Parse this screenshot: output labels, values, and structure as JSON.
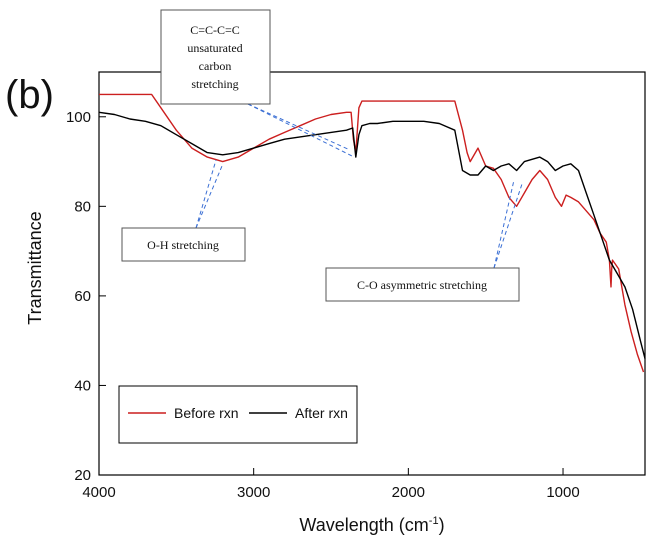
{
  "chart_data": {
    "type": "line",
    "panel_label": "(b)",
    "title": "",
    "xlabel": "Wavelength (cm",
    "xlabel_sup": "-1",
    "xlabel_close": ")",
    "ylabel": "Transmittance",
    "xlim": [
      4000,
      470
    ],
    "ylim": [
      20,
      110
    ],
    "x_ticks": [
      4000,
      3000,
      2000,
      1000
    ],
    "y_ticks": [
      20,
      40,
      60,
      80,
      100
    ],
    "legend_position": "bottom-left",
    "series": [
      {
        "name": "Before rxn",
        "color": "#cc1f1f",
        "x": [
          4000,
          3660,
          3600,
          3500,
          3400,
          3300,
          3200,
          3100,
          3000,
          2900,
          2800,
          2700,
          2600,
          2500,
          2400,
          2370,
          2355,
          2340,
          2320,
          2300,
          2200,
          2100,
          2000,
          1900,
          1800,
          1700,
          1650,
          1620,
          1600,
          1550,
          1500,
          1450,
          1400,
          1350,
          1300,
          1250,
          1200,
          1150,
          1100,
          1050,
          1010,
          980,
          950,
          900,
          850,
          800,
          760,
          720,
          700,
          690,
          685,
          680,
          660,
          640,
          620,
          600,
          560,
          520,
          480
        ],
        "y": [
          105,
          105,
          102,
          97,
          93,
          91,
          90,
          91,
          93,
          95,
          96.5,
          98,
          99.5,
          100.5,
          101,
          101,
          95,
          92,
          102,
          103.5,
          103.5,
          103.5,
          103.5,
          103.5,
          103.5,
          103.5,
          97,
          92,
          90,
          93,
          89,
          88.5,
          86,
          82,
          80,
          83,
          86,
          88,
          86,
          82,
          80,
          82.5,
          82,
          81,
          79,
          77,
          74,
          72,
          68,
          62,
          66,
          68,
          67,
          66,
          62,
          58,
          52,
          47,
          43
        ]
      },
      {
        "name": "After rxn",
        "color": "#000000",
        "x": [
          4000,
          3900,
          3800,
          3700,
          3600,
          3500,
          3400,
          3300,
          3200,
          3100,
          3000,
          2900,
          2800,
          2700,
          2600,
          2500,
          2400,
          2360,
          2340,
          2320,
          2300,
          2250,
          2200,
          2100,
          2000,
          1900,
          1800,
          1700,
          1650,
          1600,
          1550,
          1500,
          1450,
          1400,
          1350,
          1300,
          1250,
          1200,
          1150,
          1100,
          1050,
          1000,
          950,
          900,
          850,
          800,
          750,
          700,
          650,
          600,
          550,
          500,
          470
        ],
        "y": [
          101,
          100.5,
          99.5,
          99,
          98,
          96,
          94,
          92,
          91.5,
          92,
          93,
          94,
          95,
          95.5,
          96,
          96.5,
          97,
          97.5,
          91,
          96,
          98,
          98.5,
          98.5,
          99,
          99,
          99,
          98.5,
          97,
          88,
          87,
          87,
          89,
          88,
          89,
          89.5,
          88,
          90,
          90.5,
          91,
          90,
          88,
          89,
          89.5,
          88,
          83,
          78,
          73,
          68,
          65,
          62,
          57,
          50,
          46
        ]
      }
    ],
    "annotations": [
      {
        "lines": [
          "C=C-C=C",
          "unsaturated",
          "carbon",
          "stretching"
        ]
      },
      {
        "lines": [
          "O-H stretching"
        ]
      },
      {
        "lines": [
          "C-O asymmetric stretching"
        ]
      }
    ]
  }
}
